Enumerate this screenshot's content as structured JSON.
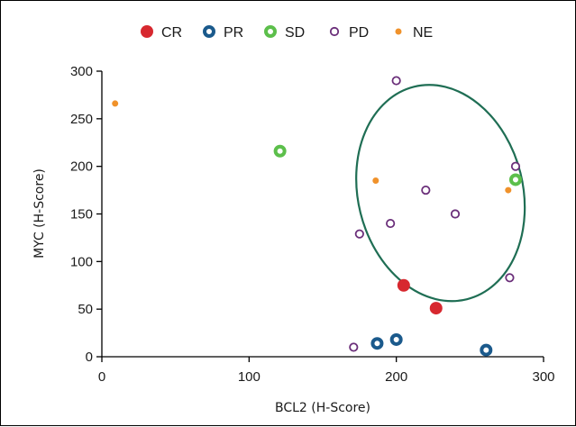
{
  "chart_data": {
    "type": "scatter",
    "title": "",
    "xlabel": "BCL2 (H-Score)",
    "ylabel": "MYC (H-Score)",
    "xlim": [
      0,
      300
    ],
    "ylim": [
      0,
      300
    ],
    "xticks": [
      "0",
      "100",
      "200",
      "300"
    ],
    "yticks": [
      "0",
      "50",
      "100",
      "150",
      "200",
      "250",
      "300"
    ],
    "grid": false,
    "legend_position": "top",
    "series": [
      {
        "name": "CR",
        "color": "#d7282f",
        "marker": "filled-circle",
        "points": [
          [
            205,
            75
          ],
          [
            227,
            51
          ]
        ]
      },
      {
        "name": "PR",
        "color": "#1b5a8c",
        "marker": "thick-ring",
        "points": [
          [
            187,
            14
          ],
          [
            200,
            18
          ],
          [
            261,
            7
          ]
        ]
      },
      {
        "name": "SD",
        "color": "#5cbf4b",
        "marker": "thick-ring",
        "points": [
          [
            121,
            216
          ],
          [
            281,
            186
          ]
        ]
      },
      {
        "name": "PD",
        "color": "#6b2f7a",
        "marker": "open-circle",
        "points": [
          [
            200,
            290
          ],
          [
            220,
            175
          ],
          [
            240,
            150
          ],
          [
            196,
            140
          ],
          [
            175,
            129
          ],
          [
            281,
            200
          ],
          [
            277,
            83
          ],
          [
            171,
            10
          ]
        ]
      },
      {
        "name": "NE",
        "color": "#f0922b",
        "marker": "small-dot",
        "points": [
          [
            9,
            266
          ],
          [
            186,
            185
          ],
          [
            276,
            175
          ]
        ]
      }
    ],
    "annotations": [
      {
        "type": "ellipse",
        "color": "#1f6e54",
        "cx": 230,
        "cy": 172,
        "rx": 56,
        "ry": 115
      }
    ]
  }
}
